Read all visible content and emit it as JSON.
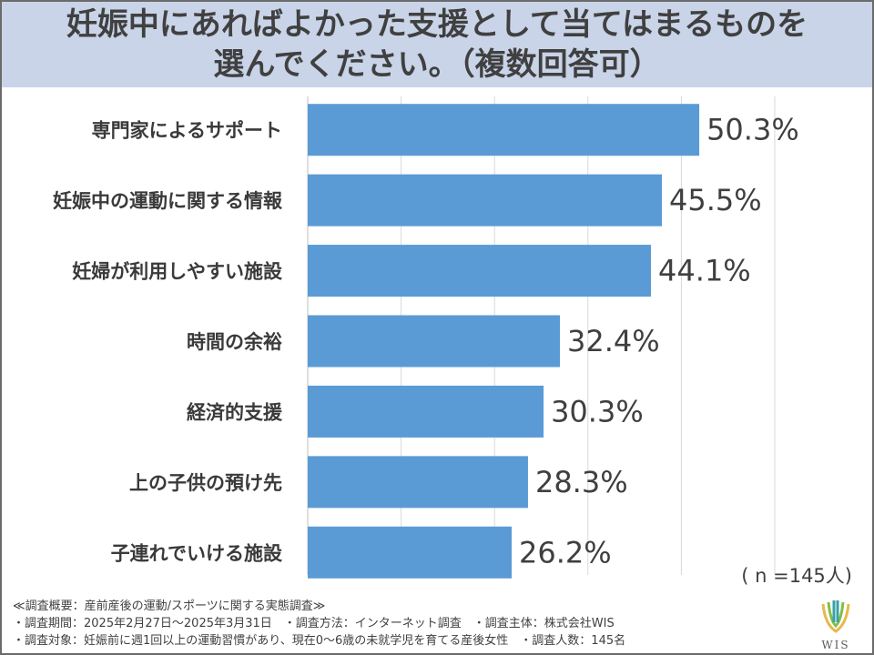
{
  "title": {
    "line1": "妊娠中にあればよかった支援として当てはまるものを",
    "line2": "選んでください。（複数回答可）"
  },
  "chart_data": {
    "type": "bar",
    "orientation": "horizontal",
    "categories": [
      "専門家によるサポート",
      "妊娠中の運動に関する情報",
      "妊婦が利用しやすい施設",
      "時間の余裕",
      "経済的支援",
      "上の子供の預け先",
      "子連れでいける施設"
    ],
    "values": [
      50.3,
      45.5,
      44.1,
      32.4,
      30.3,
      28.3,
      26.2
    ],
    "value_labels": [
      "50.3%",
      "45.5%",
      "44.1%",
      "32.4%",
      "30.3%",
      "28.3%",
      "26.2%"
    ],
    "xlim": [
      0,
      60
    ],
    "grid": true,
    "bar_color": "#5b9bd5"
  },
  "sample_size": "( n =145人)",
  "footer": {
    "line1": "≪調査概要：産前産後の運動/スポーツに関する実態調査≫",
    "line2": "・調査期間：2025年2月27日〜2025年3月31日　・調査方法：インターネット調査　・調査主体：株式会社WIS",
    "line3": "・調査対象：妊娠前に週1回以上の運動習慣があり、現在0〜6歳の未就学児を育てる産後女性　・調査人数：145名"
  },
  "logo": {
    "text": "WIS",
    "icon": "wis-logo-icon",
    "colors": [
      "#e8b84a",
      "#7fbf4a",
      "#3aa0a8"
    ]
  }
}
